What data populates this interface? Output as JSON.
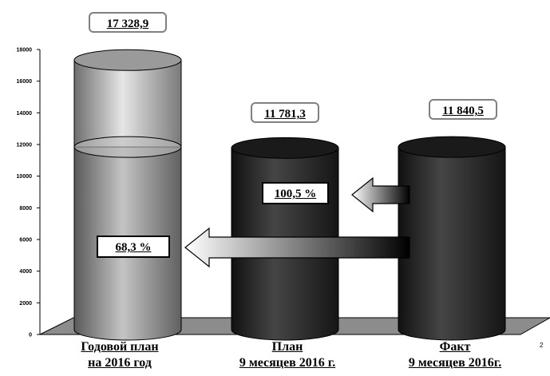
{
  "chart_data": {
    "type": "bar",
    "categories": [
      "Годовой план на 2016 год",
      "План 9 месяцев 2016 г.",
      "Факт 9 месяцев 2016г."
    ],
    "category_lines": [
      [
        "Годовой план",
        "на 2016 год"
      ],
      [
        "План",
        "9 месяцев 2016 г."
      ],
      [
        "Факт",
        "9 месяцев 2016г."
      ]
    ],
    "values": [
      17328.9,
      11781.3,
      11840.5
    ],
    "value_labels": [
      "17 328,9",
      "11 781,3",
      "11 840,5"
    ],
    "highlight_level": 11840.5,
    "ylim": [
      0,
      18000
    ],
    "yticks": [
      0,
      2000,
      4000,
      6000,
      8000,
      10000,
      12000,
      14000,
      16000,
      18000
    ],
    "grid": false,
    "annotations": [
      {
        "text": "100,5 %",
        "from": "Факт",
        "to": "План"
      },
      {
        "text": "68,3 %",
        "from": "Факт",
        "to": "Годовой план"
      }
    ],
    "colors": {
      "annual_plan": "#a8a8a8",
      "plan": "#2a2a2a",
      "fact": "#2a2a2a",
      "floor": "#8c8c8c"
    }
  },
  "page_number": "2"
}
